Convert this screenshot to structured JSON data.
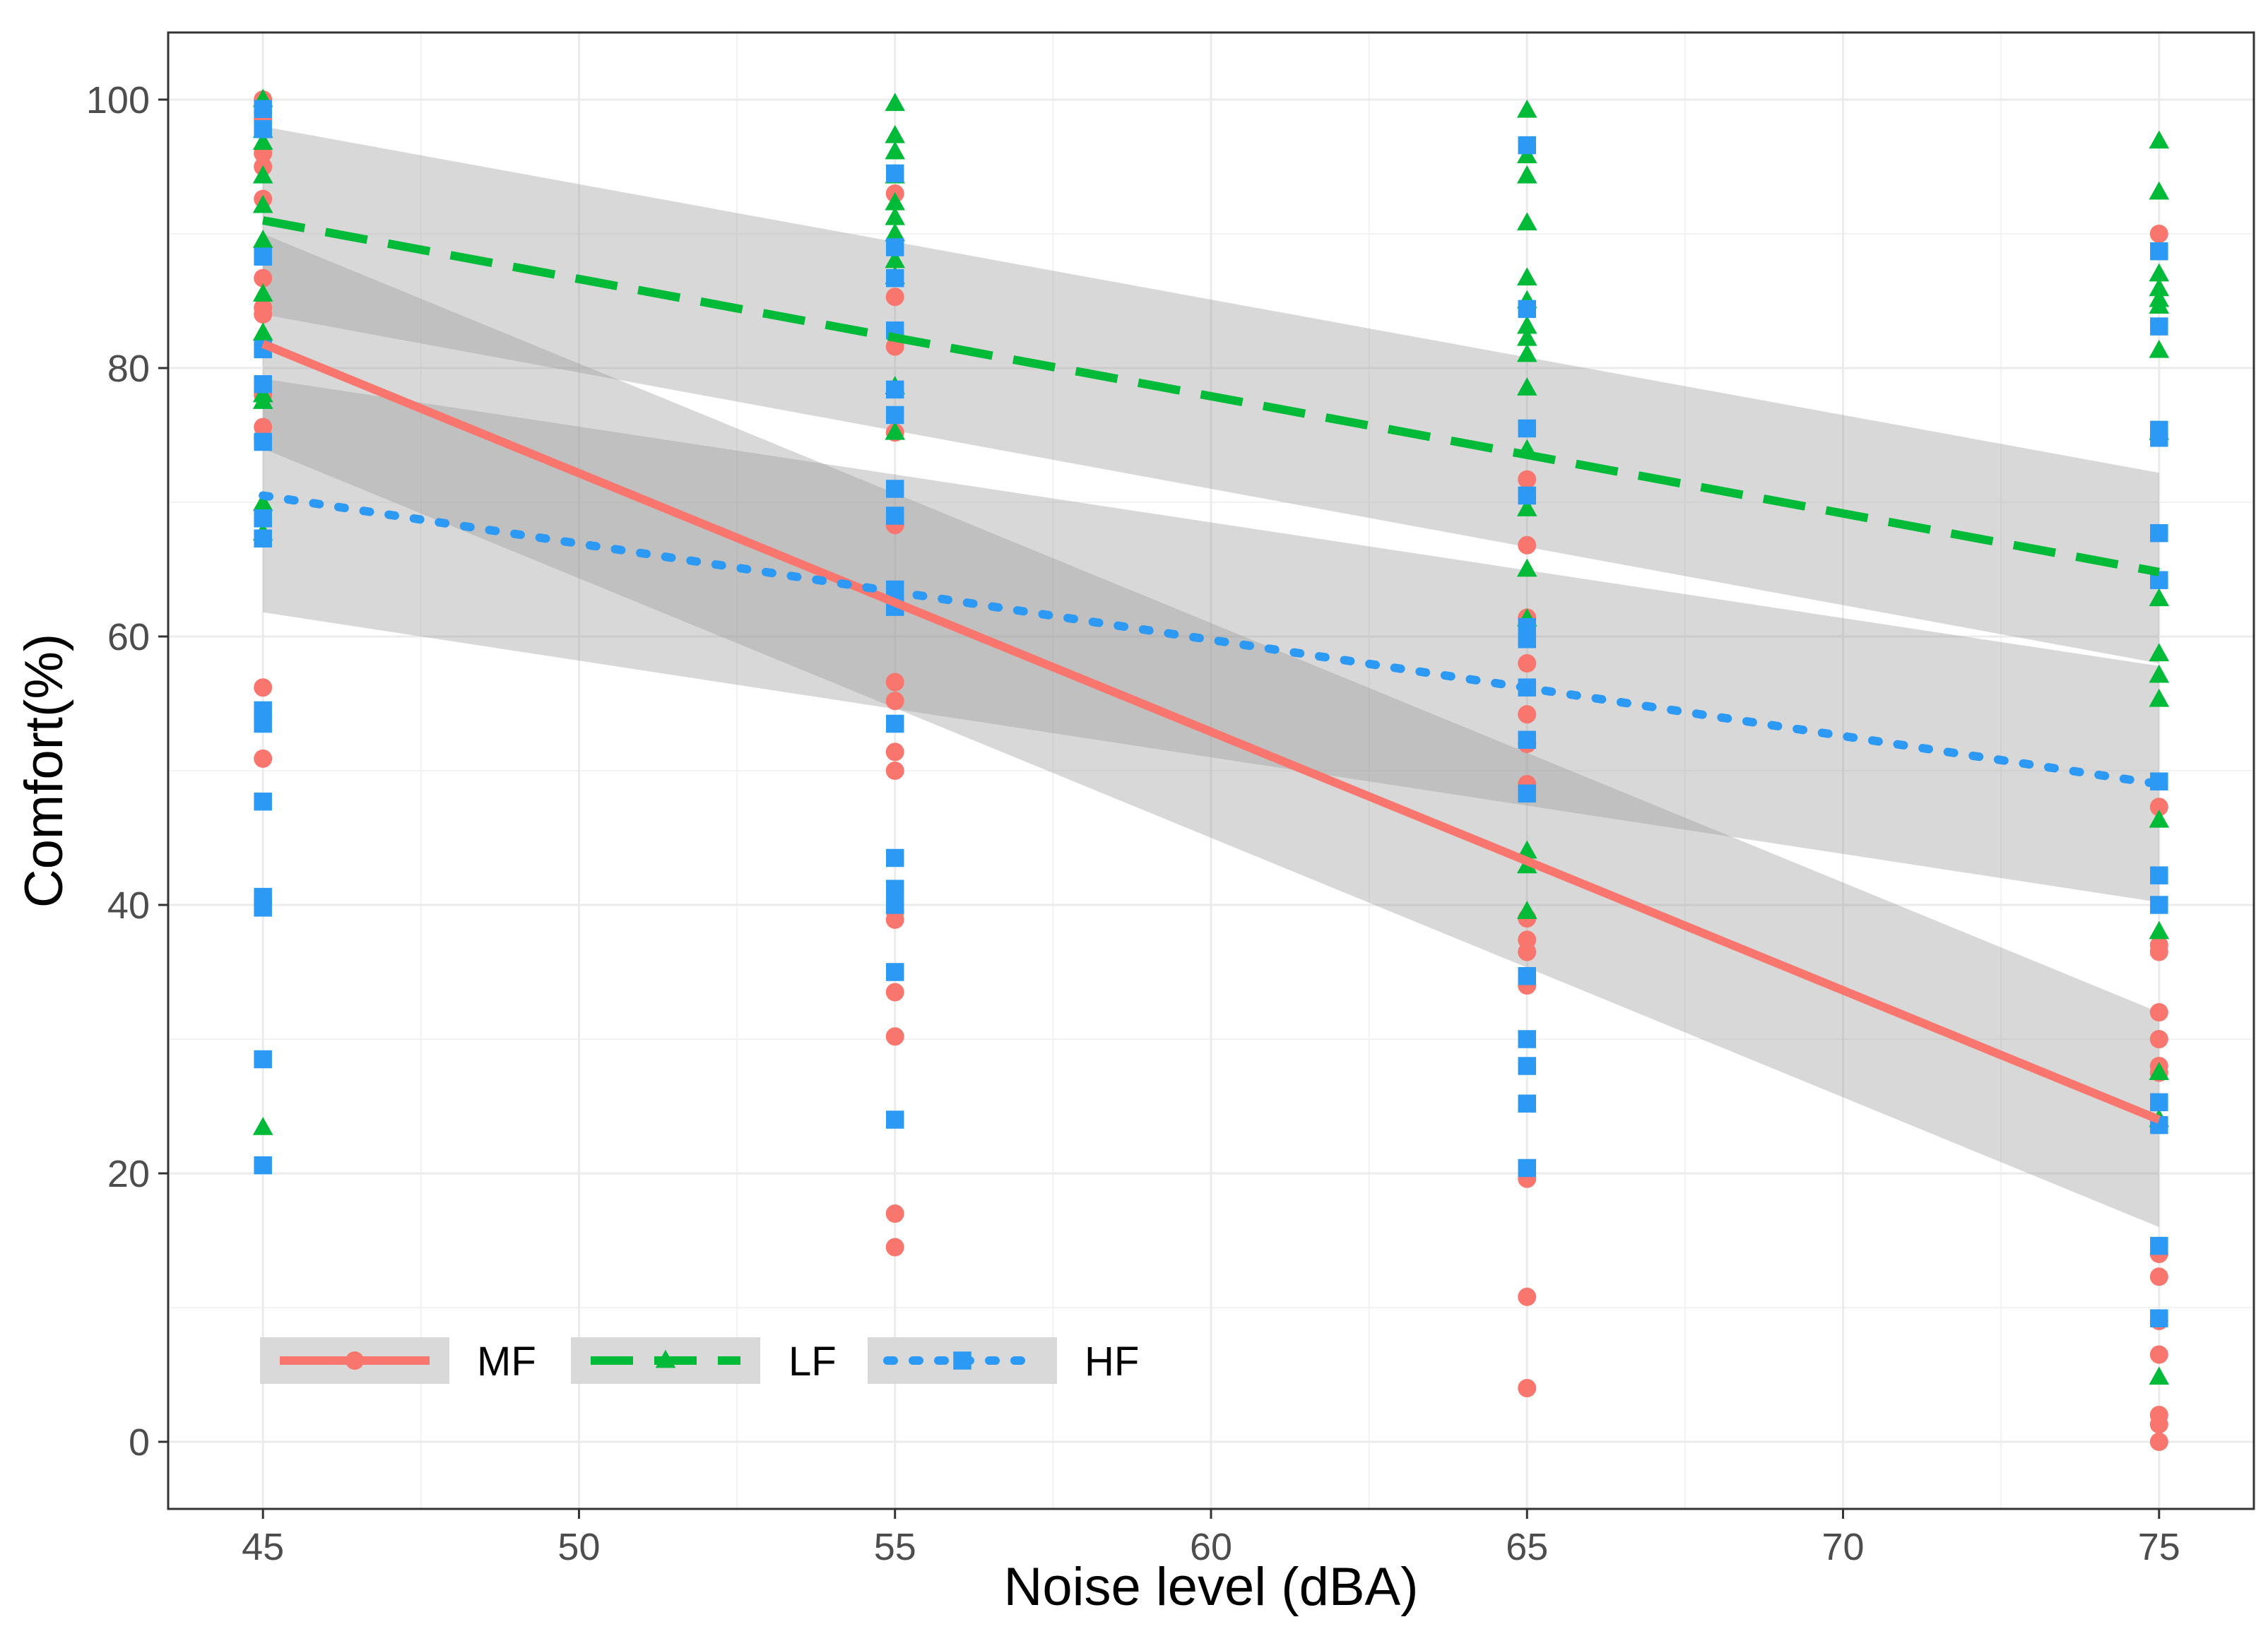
{
  "chart_data": {
    "type": "scatter",
    "xlabel": "Noise level (dBA)",
    "ylabel": "Comfort(%)",
    "xlim": [
      43.5,
      76.5
    ],
    "ylim": [
      -5,
      105
    ],
    "x_ticks": [
      45,
      50,
      55,
      60,
      65,
      70,
      75
    ],
    "y_ticks": [
      0,
      20,
      40,
      60,
      80,
      100
    ],
    "grid": true,
    "legend_position": "bottom-left",
    "series": [
      {
        "name": "MF",
        "color": "#F8766D",
        "marker": "circle",
        "line_style": "solid",
        "fit": {
          "x": [
            45,
            75
          ],
          "y": [
            81.8,
            24.0
          ]
        },
        "ci_lower": [
          74,
          16
        ],
        "ci_upper": [
          90,
          32
        ],
        "points": [
          [
            45,
            100
          ],
          [
            45,
            99
          ],
          [
            45,
            98.5
          ],
          [
            45,
            96
          ],
          [
            45,
            95
          ],
          [
            45,
            92.6
          ],
          [
            45,
            86.7
          ],
          [
            45,
            84.5
          ],
          [
            45,
            84
          ],
          [
            45,
            78
          ],
          [
            45,
            75.6
          ],
          [
            45,
            74.8
          ],
          [
            45,
            56.2
          ],
          [
            45,
            50.9
          ],
          [
            55,
            93
          ],
          [
            55,
            85.3
          ],
          [
            55,
            81.6
          ],
          [
            55,
            75.2
          ],
          [
            55,
            68.3
          ],
          [
            55,
            56.6
          ],
          [
            55,
            55.2
          ],
          [
            55,
            51.4
          ],
          [
            55,
            50
          ],
          [
            55,
            39.5
          ],
          [
            55,
            38.9
          ],
          [
            55,
            33.5
          ],
          [
            55,
            30.2
          ],
          [
            55,
            17
          ],
          [
            55,
            14.5
          ],
          [
            65,
            71.7
          ],
          [
            65,
            66.8
          ],
          [
            65,
            61.4
          ],
          [
            65,
            58
          ],
          [
            65,
            54.2
          ],
          [
            65,
            52
          ],
          [
            65,
            49
          ],
          [
            65,
            39
          ],
          [
            65,
            37.4
          ],
          [
            65,
            36.5
          ],
          [
            65,
            34
          ],
          [
            65,
            19.6
          ],
          [
            65,
            10.8
          ],
          [
            65,
            4
          ],
          [
            75,
            90
          ],
          [
            75,
            47.3
          ],
          [
            75,
            37
          ],
          [
            75,
            36.5
          ],
          [
            75,
            32
          ],
          [
            75,
            30
          ],
          [
            75,
            28
          ],
          [
            75,
            27.5
          ],
          [
            75,
            14
          ],
          [
            75,
            12.3
          ],
          [
            75,
            9
          ],
          [
            75,
            6.5
          ],
          [
            75,
            2
          ],
          [
            75,
            1.3
          ],
          [
            75,
            0
          ]
        ]
      },
      {
        "name": "LF",
        "color": "#00BA38",
        "marker": "triangle",
        "line_style": "dashed",
        "fit": {
          "x": [
            45,
            75
          ],
          "y": [
            91,
            64.8
          ]
        },
        "ci_lower": [
          84,
          58
        ],
        "ci_upper": [
          98,
          72.2
        ],
        "points": [
          [
            45,
            100
          ],
          [
            45,
            97.7
          ],
          [
            45,
            96.8
          ],
          [
            45,
            94.3
          ],
          [
            45,
            92.1
          ],
          [
            45,
            89.5
          ],
          [
            45,
            85.5
          ],
          [
            45,
            82.6
          ],
          [
            45,
            78
          ],
          [
            45,
            77.5
          ],
          [
            45,
            69.9
          ],
          [
            45,
            67.7
          ],
          [
            45,
            23.4
          ],
          [
            55,
            99.7
          ],
          [
            55,
            97.3
          ],
          [
            55,
            96.1
          ],
          [
            55,
            94.3
          ],
          [
            55,
            92.3
          ],
          [
            55,
            91.2
          ],
          [
            55,
            90
          ],
          [
            55,
            88
          ],
          [
            55,
            86.8
          ],
          [
            55,
            78.6
          ],
          [
            55,
            75.2
          ],
          [
            65,
            99.2
          ],
          [
            65,
            95.8
          ],
          [
            65,
            94.3
          ],
          [
            65,
            90.8
          ],
          [
            65,
            86.7
          ],
          [
            65,
            85
          ],
          [
            65,
            83.1
          ],
          [
            65,
            82.2
          ],
          [
            65,
            81
          ],
          [
            65,
            78.5
          ],
          [
            65,
            73.9
          ],
          [
            65,
            69.5
          ],
          [
            65,
            65
          ],
          [
            65,
            61.3
          ],
          [
            65,
            44
          ],
          [
            65,
            42.9
          ],
          [
            65,
            39.5
          ],
          [
            75,
            96.9
          ],
          [
            75,
            93.1
          ],
          [
            75,
            87
          ],
          [
            75,
            85.9
          ],
          [
            75,
            85.1
          ],
          [
            75,
            84.6
          ],
          [
            75,
            81.3
          ],
          [
            75,
            75.2
          ],
          [
            75,
            62.8
          ],
          [
            75,
            58.7
          ],
          [
            75,
            57.1
          ],
          [
            75,
            55.3
          ],
          [
            75,
            46.3
          ],
          [
            75,
            38
          ],
          [
            75,
            27.5
          ],
          [
            75,
            24
          ],
          [
            75,
            4.8
          ]
        ]
      },
      {
        "name": "HF",
        "color": "#2C9AF5",
        "marker": "square",
        "line_style": "dotted",
        "fit": {
          "x": [
            45,
            75
          ],
          "y": [
            70.5,
            49
          ]
        },
        "ci_lower": [
          61.8,
          40.2
        ],
        "ci_upper": [
          79.2,
          57.8
        ],
        "points": [
          [
            45,
            99.3
          ],
          [
            45,
            97.8
          ],
          [
            45,
            88.3
          ],
          [
            45,
            81.4
          ],
          [
            45,
            78.8
          ],
          [
            45,
            74.5
          ],
          [
            45,
            68.8
          ],
          [
            45,
            67.3
          ],
          [
            45,
            54.5
          ],
          [
            45,
            53.5
          ],
          [
            45,
            47.7
          ],
          [
            45,
            40.6
          ],
          [
            45,
            39.8
          ],
          [
            45,
            28.5
          ],
          [
            45,
            20.6
          ],
          [
            55,
            94.5
          ],
          [
            55,
            89
          ],
          [
            55,
            86.7
          ],
          [
            55,
            82.8
          ],
          [
            55,
            78.4
          ],
          [
            55,
            76.5
          ],
          [
            55,
            71
          ],
          [
            55,
            69
          ],
          [
            55,
            63.5
          ],
          [
            55,
            62.2
          ],
          [
            55,
            53.5
          ],
          [
            55,
            43.5
          ],
          [
            55,
            41.2
          ],
          [
            55,
            40
          ],
          [
            55,
            35
          ],
          [
            55,
            24
          ],
          [
            65,
            96.6
          ],
          [
            65,
            84.4
          ],
          [
            65,
            75.5
          ],
          [
            65,
            70.5
          ],
          [
            65,
            60.7
          ],
          [
            65,
            59.8
          ],
          [
            65,
            56.2
          ],
          [
            65,
            52.3
          ],
          [
            65,
            48.3
          ],
          [
            65,
            34.7
          ],
          [
            65,
            30
          ],
          [
            65,
            28
          ],
          [
            65,
            25.2
          ],
          [
            65,
            20.4
          ],
          [
            75,
            88.7
          ],
          [
            75,
            83.1
          ],
          [
            75,
            75.4
          ],
          [
            75,
            74.8
          ],
          [
            75,
            67.7
          ],
          [
            75,
            64.2
          ],
          [
            75,
            49.2
          ],
          [
            75,
            42.2
          ],
          [
            75,
            40
          ],
          [
            75,
            25.3
          ],
          [
            75,
            23.6
          ],
          [
            75,
            14.6
          ],
          [
            75,
            9.2
          ]
        ]
      }
    ]
  }
}
